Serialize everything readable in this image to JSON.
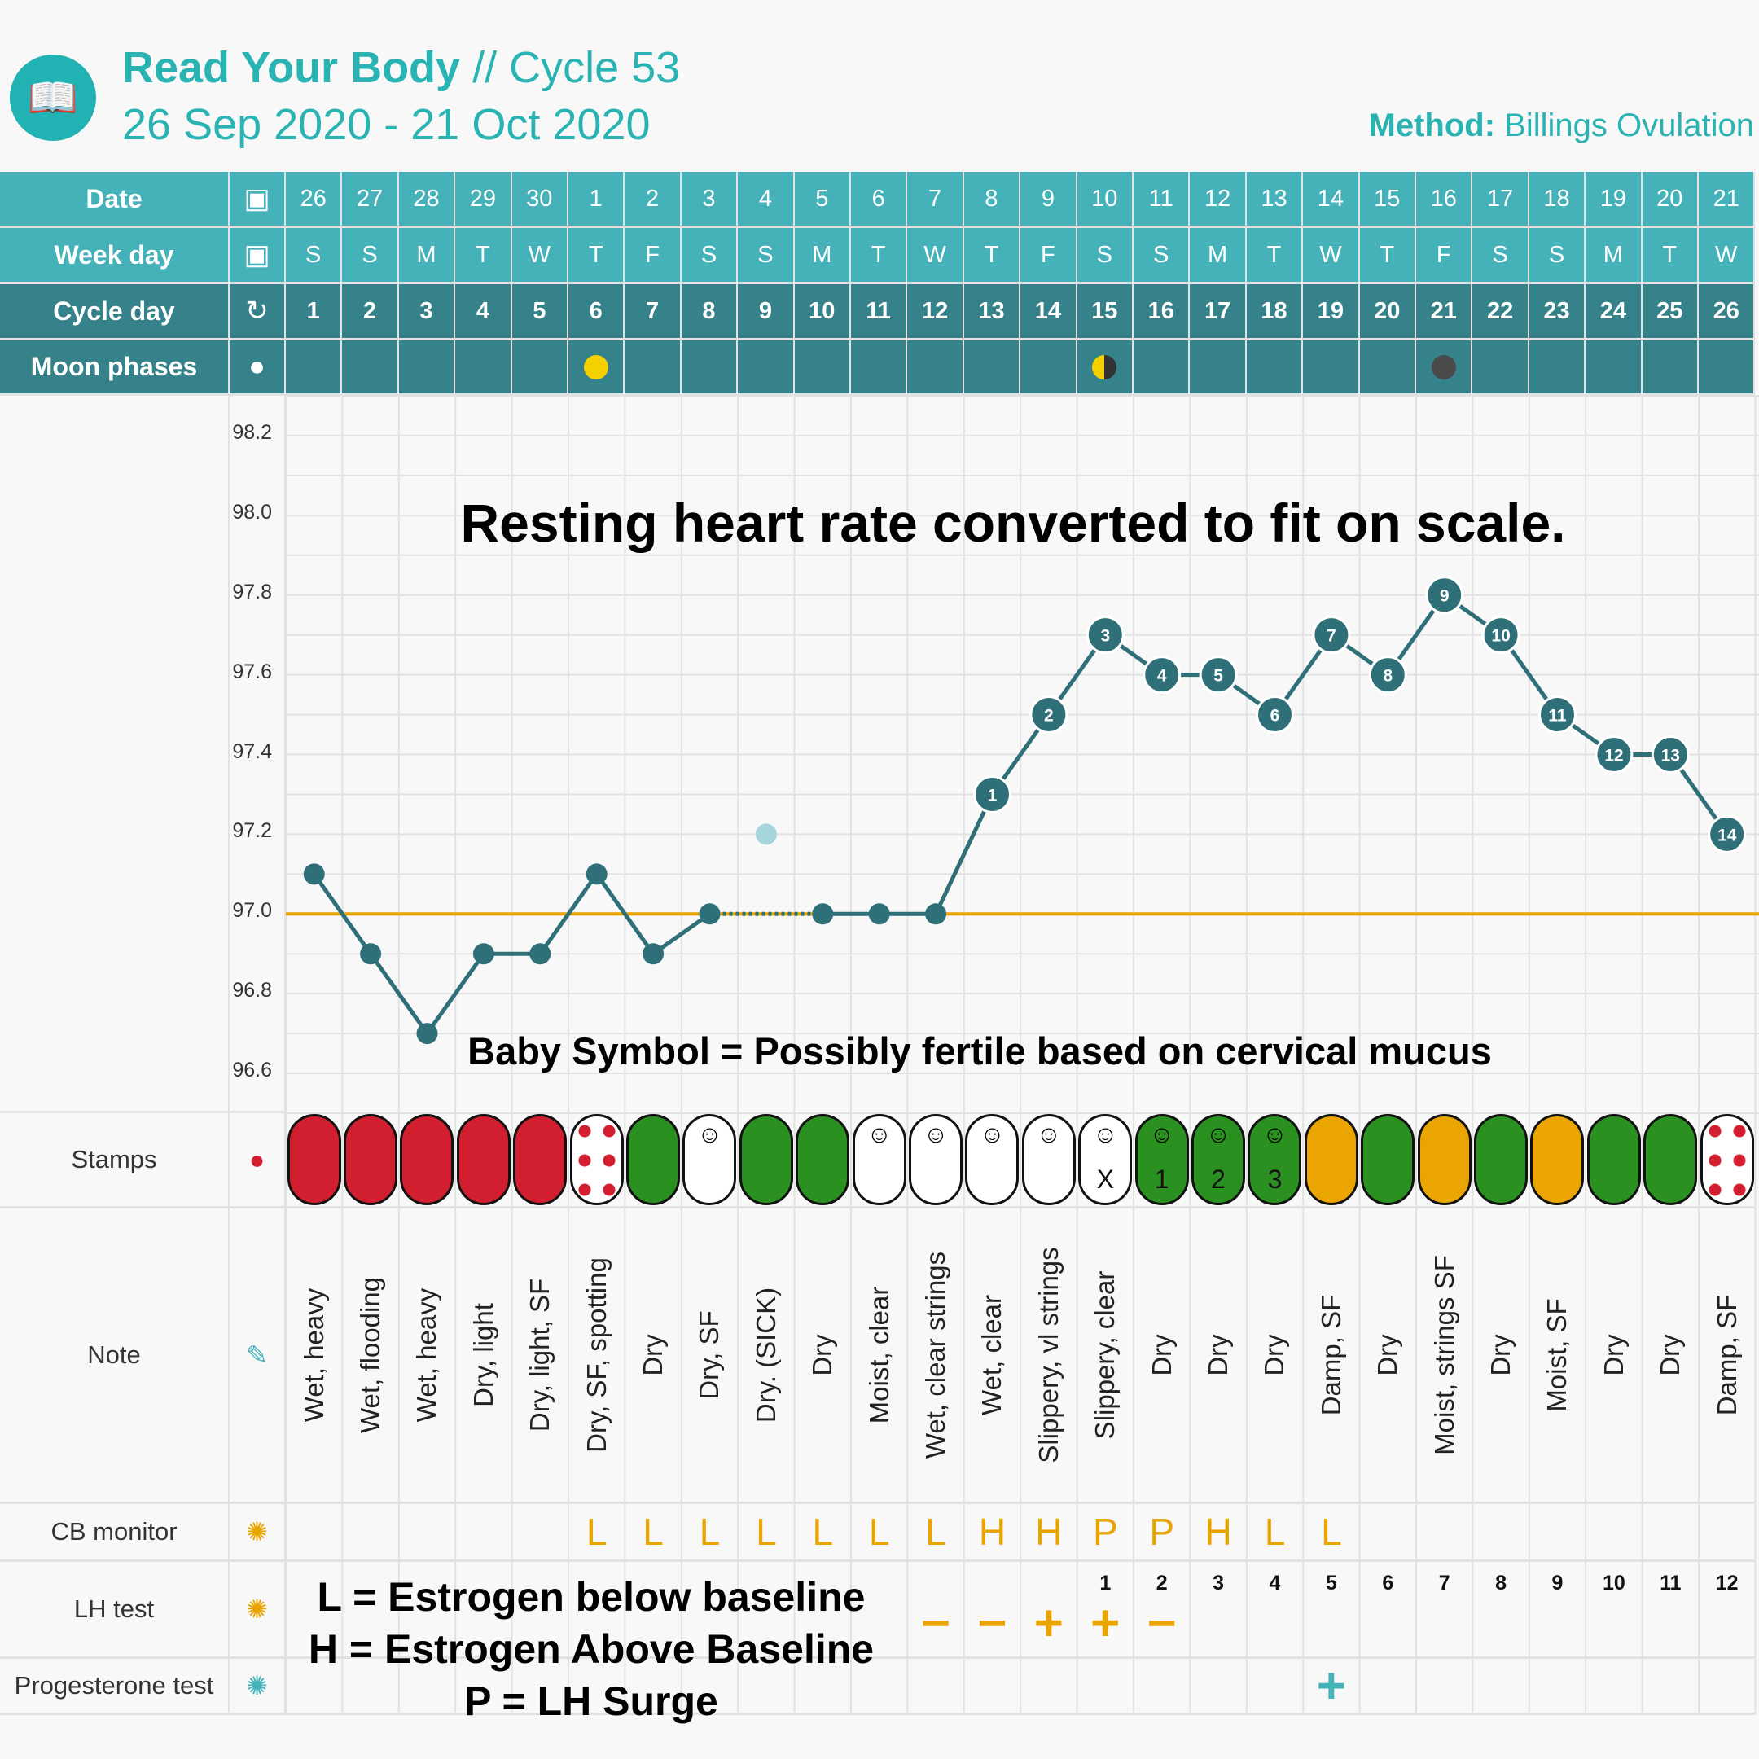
{
  "header": {
    "app": "Read Your Body",
    "cycle": " // Cycle 53",
    "date_range": "26 Sep 2020 - 21 Oct 2020",
    "method_label": "Method:",
    "method_value": " Billings Ovulation",
    "logo": "book-ram-logo"
  },
  "rows": {
    "date": "Date",
    "weekday": "Week day",
    "cycle_day": "Cycle day",
    "moon": "Moon phases",
    "stamps": "Stamps",
    "note": "Note",
    "cb": "CB monitor",
    "lh": "LH test",
    "prog": "Progesterone test"
  },
  "colors": {
    "header_light": "#45b1b9",
    "header_dark": "#36828a",
    "accent": "#2ab3b3",
    "line": "#2f6f78",
    "baseline": "#e8a400",
    "red": "#d21f30",
    "green": "#2a9020",
    "yellow": "#eaa500",
    "prog": "#45b1b9"
  },
  "days": {
    "dates": [
      "26",
      "27",
      "28",
      "29",
      "30",
      "1",
      "2",
      "3",
      "4",
      "5",
      "6",
      "7",
      "8",
      "9",
      "10",
      "11",
      "12",
      "13",
      "14",
      "15",
      "16",
      "17",
      "18",
      "19",
      "20",
      "21"
    ],
    "weekdays": [
      "S",
      "S",
      "M",
      "T",
      "W",
      "T",
      "F",
      "S",
      "S",
      "M",
      "T",
      "W",
      "T",
      "F",
      "S",
      "S",
      "M",
      "T",
      "W",
      "T",
      "F",
      "S",
      "S",
      "M",
      "T",
      "W"
    ],
    "cycle_days": [
      "1",
      "2",
      "3",
      "4",
      "5",
      "6",
      "7",
      "8",
      "9",
      "10",
      "11",
      "12",
      "13",
      "14",
      "15",
      "16",
      "17",
      "18",
      "19",
      "20",
      "21",
      "22",
      "23",
      "24",
      "25",
      "26"
    ],
    "moon": [
      null,
      null,
      null,
      null,
      null,
      "full",
      null,
      null,
      null,
      null,
      null,
      null,
      null,
      null,
      "quarter",
      null,
      null,
      null,
      null,
      null,
      "new",
      null,
      null,
      null,
      null,
      null
    ]
  },
  "chart_data": {
    "type": "line",
    "ylim": [
      96.5,
      98.3
    ],
    "yticks": [
      "98.2",
      "98.0",
      "97.8",
      "97.6",
      "97.4",
      "97.2",
      "97.0",
      "96.8",
      "96.6"
    ],
    "grid": true,
    "baseline": 97.0,
    "x": [
      1,
      2,
      3,
      4,
      5,
      6,
      7,
      8,
      9,
      10,
      11,
      12,
      13,
      14,
      15,
      16,
      17,
      18,
      19,
      20,
      21,
      22,
      23,
      24,
      25,
      26
    ],
    "temps": [
      97.1,
      96.9,
      96.7,
      96.9,
      96.9,
      97.1,
      96.9,
      97.0,
      97.2,
      97.0,
      97.0,
      97.0,
      97.3,
      97.5,
      97.7,
      97.6,
      97.6,
      97.5,
      97.7,
      97.6,
      97.8,
      97.7,
      97.5,
      97.4,
      97.4,
      97.2
    ],
    "excluded_days": [
      9
    ],
    "point_labels": [
      "",
      "",
      "",
      "",
      "",
      "",
      "",
      "",
      "",
      "",
      "",
      "",
      "1",
      "2",
      "3",
      "4",
      "5",
      "6",
      "7",
      "8",
      "9",
      "10",
      "11",
      "12",
      "13",
      "14"
    ]
  },
  "annotations": {
    "hr": "Resting heart rate converted to fit on scale.",
    "baby": "Baby Symbol = Possibly fertile based on cervical mucus",
    "legend_l": "L = Estrogen below baseline",
    "legend_h": "H = Estrogen Above Baseline",
    "legend_p": "P = LH Surge"
  },
  "stamps": [
    {
      "c": "red"
    },
    {
      "c": "red"
    },
    {
      "c": "red"
    },
    {
      "c": "red"
    },
    {
      "c": "red"
    },
    {
      "c": "dots"
    },
    {
      "c": "green"
    },
    {
      "c": "white",
      "baby": true
    },
    {
      "c": "green"
    },
    {
      "c": "green"
    },
    {
      "c": "white",
      "baby": true
    },
    {
      "c": "white",
      "baby": true
    },
    {
      "c": "white",
      "baby": true
    },
    {
      "c": "white",
      "baby": true
    },
    {
      "c": "white",
      "baby": true,
      "label": "X"
    },
    {
      "c": "green",
      "baby": true,
      "label": "1"
    },
    {
      "c": "green",
      "baby": true,
      "label": "2"
    },
    {
      "c": "green",
      "baby": true,
      "label": "3"
    },
    {
      "c": "yellow"
    },
    {
      "c": "green"
    },
    {
      "c": "yellow"
    },
    {
      "c": "green"
    },
    {
      "c": "yellow"
    },
    {
      "c": "green"
    },
    {
      "c": "green"
    },
    {
      "c": "dots"
    }
  ],
  "notes": [
    "Wet, heavy",
    "Wet, flooding",
    "Wet, heavy",
    "Dry, light",
    "Dry, light, SF",
    "Dry, SF, spotting",
    "Dry",
    "Dry, SF",
    "Dry. (SICK)",
    "Dry",
    "Moist, clear",
    "Wet, clear strings",
    "Wet, clear",
    "Slippery, vl strings",
    "Slippery, clear",
    "Dry",
    "Dry",
    "Dry",
    "Damp, SF",
    "Dry",
    "Moist, strings SF",
    "Dry",
    "Moist, SF",
    "Dry",
    "Dry",
    "Damp, SF"
  ],
  "cb": [
    "",
    "",
    "",
    "",
    "",
    "L",
    "L",
    "L",
    "L",
    "L",
    "L",
    "L",
    "H",
    "H",
    "P",
    "P",
    "H",
    "L",
    "L",
    "",
    "",
    "",
    "",
    "",
    "",
    ""
  ],
  "peak_days": [
    "",
    "",
    "",
    "",
    "",
    "",
    "",
    "",
    "",
    "",
    "",
    "",
    "",
    "",
    "1",
    "2",
    "3",
    "4",
    "5",
    "6",
    "7",
    "8",
    "9",
    "10",
    "11",
    "12"
  ],
  "lh": [
    "",
    "",
    "",
    "",
    "",
    "",
    "",
    "",
    "",
    "",
    "",
    "−",
    "−",
    "+",
    "+",
    "−",
    "",
    "",
    "",
    "",
    "",
    "",
    "",
    "",
    "",
    ""
  ],
  "prog": [
    "",
    "",
    "",
    "",
    "",
    "",
    "",
    "",
    "",
    "",
    "",
    "",
    "",
    "",
    "",
    "",
    "",
    "",
    "+",
    "",
    "",
    "",
    "",
    "",
    "",
    ""
  ]
}
